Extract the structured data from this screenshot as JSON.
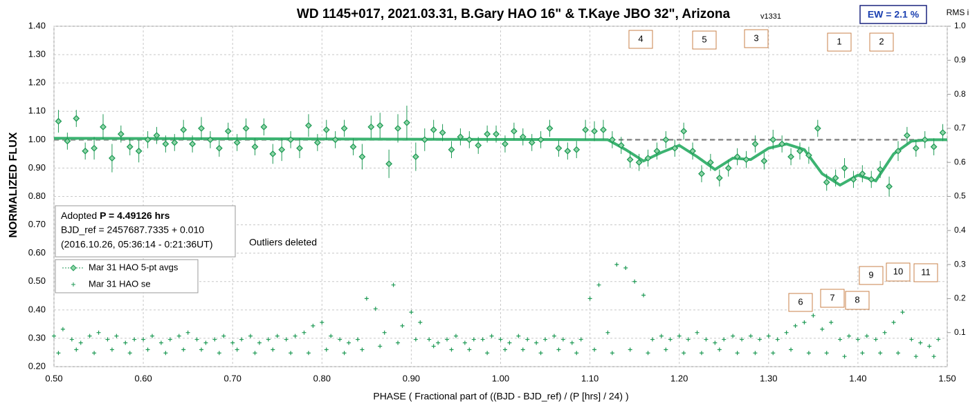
{
  "chart_data": {
    "type": "scatter",
    "title": "WD 1145+017, 2021.03.31, B.Gary HAO 16\" & T.Kaye JBO 32\", Arizona",
    "version": "v1331",
    "ew": "EW = 2.1 %",
    "y2label": "RMS i",
    "xlabel": "PHASE ( Fractional part of ((BJD - BJD_ref) / (P [hrs] / 24) )",
    "ylabel": "NORMALIZED FLUX",
    "info": {
      "prefix": "Adopted",
      "period": "P = 4.49126 hrs",
      "line2": "BJD_ref = 2457687.7335 + 0.010",
      "line3": "(2016.10.26, 05:36:14 - 0:21:36UT)"
    },
    "note": "Outliers deleted",
    "annotations": [
      "4",
      "5",
      "3",
      "1",
      "2",
      "6",
      "7",
      "8",
      "9",
      "10",
      "11"
    ],
    "xlim": [
      0.5,
      1.5
    ],
    "ylim": [
      0.2,
      1.4
    ],
    "y2lim": [
      0,
      1
    ],
    "xticks": [
      {
        "value": 0.5,
        "label": "0.50"
      },
      {
        "value": 0.6,
        "label": "0.60"
      },
      {
        "value": 0.7,
        "label": "0.70"
      },
      {
        "value": 0.8,
        "label": "0.80"
      },
      {
        "value": 0.9,
        "label": "0.90"
      },
      {
        "value": 1.0,
        "label": "1.00"
      },
      {
        "value": 1.1,
        "label": "1.10"
      },
      {
        "value": 1.2,
        "label": "1.20"
      },
      {
        "value": 1.3,
        "label": "1.30"
      },
      {
        "value": 1.4,
        "label": "1.40"
      },
      {
        "value": 1.5,
        "label": "1.50"
      }
    ],
    "yticks": [
      {
        "value": 0.2,
        "label": "0.20"
      },
      {
        "value": 0.3,
        "label": "0.30"
      },
      {
        "value": 0.4,
        "label": "0.40"
      },
      {
        "value": 0.5,
        "label": "0.50"
      },
      {
        "value": 0.6,
        "label": "0.60"
      },
      {
        "value": 0.7,
        "label": "0.70"
      },
      {
        "value": 0.8,
        "label": "0.80"
      },
      {
        "value": 0.9,
        "label": "0.90"
      },
      {
        "value": 1.0,
        "label": "1.00"
      },
      {
        "value": 1.1,
        "label": "1.10"
      },
      {
        "value": 1.2,
        "label": "1.20"
      },
      {
        "value": 1.3,
        "label": "1.30"
      },
      {
        "value": 1.4,
        "label": "1.40"
      }
    ],
    "y2ticks": [
      0.1,
      0.2,
      0.3,
      0.4,
      0.5,
      0.6,
      0.7,
      0.8,
      0.9,
      {
        "value": 1,
        "label": "1.0"
      }
    ],
    "grid": true,
    "series": [
      {
        "name": "Mar 31 HAO 5-pt avgs",
        "color": "#1f9a55",
        "x": [
          0.505,
          0.515,
          0.525,
          0.535,
          0.545,
          0.555,
          0.565,
          0.575,
          0.585,
          0.595,
          0.605,
          0.615,
          0.625,
          0.635,
          0.645,
          0.655,
          0.665,
          0.675,
          0.685,
          0.695,
          0.705,
          0.715,
          0.725,
          0.735,
          0.745,
          0.755,
          0.765,
          0.775,
          0.785,
          0.795,
          0.805,
          0.815,
          0.825,
          0.835,
          0.845,
          0.855,
          0.865,
          0.875,
          0.885,
          0.895,
          0.905,
          0.915,
          0.925,
          0.935,
          0.945,
          0.955,
          0.965,
          0.975,
          0.985,
          0.995,
          1.005,
          1.015,
          1.025,
          1.035,
          1.045,
          1.055,
          1.065,
          1.075,
          1.085,
          1.095,
          1.105,
          1.115,
          1.125,
          1.135,
          1.145,
          1.155,
          1.165,
          1.175,
          1.185,
          1.195,
          1.205,
          1.215,
          1.225,
          1.235,
          1.245,
          1.255,
          1.265,
          1.275,
          1.285,
          1.295,
          1.305,
          1.315,
          1.325,
          1.335,
          1.345,
          1.355,
          1.365,
          1.375,
          1.385,
          1.395,
          1.405,
          1.415,
          1.425,
          1.435,
          1.445,
          1.455,
          1.465,
          1.475,
          1.485,
          1.495
        ],
        "values": [
          1.065,
          0.995,
          1.075,
          0.96,
          0.97,
          1.045,
          0.935,
          1.02,
          0.975,
          0.96,
          1.0,
          1.015,
          0.985,
          0.99,
          1.035,
          0.985,
          1.04,
          1.0,
          0.97,
          1.03,
          0.99,
          1.04,
          0.975,
          1.045,
          0.95,
          0.965,
          1.0,
          0.97,
          1.05,
          0.99,
          1.035,
          1.0,
          1.04,
          0.975,
          0.94,
          1.045,
          1.05,
          0.915,
          1.04,
          1.06,
          0.94,
          1.0,
          1.035,
          1.025,
          0.965,
          1.01,
          1.0,
          0.98,
          1.02,
          1.02,
          0.985,
          1.03,
          1.01,
          0.99,
          1.0,
          1.04,
          0.97,
          0.96,
          0.965,
          1.035,
          1.03,
          1.035,
          1.0,
          0.98,
          0.93,
          0.92,
          0.935,
          0.96,
          1.0,
          0.97,
          1.03,
          0.96,
          0.88,
          0.92,
          0.865,
          0.9,
          0.94,
          0.93,
          0.985,
          0.925,
          1.0,
          0.985,
          0.94,
          0.96,
          0.945,
          1.04,
          0.85,
          0.865,
          0.9,
          0.86,
          0.88,
          0.86,
          0.895,
          0.835,
          0.96,
          1.015,
          0.97,
          1.0,
          0.975,
          1.025
        ],
        "errors": [
          0.04,
          0.03,
          0.03,
          0.03,
          0.04,
          0.045,
          0.05,
          0.03,
          0.03,
          0.04,
          0.03,
          0.03,
          0.03,
          0.03,
          0.035,
          0.03,
          0.04,
          0.03,
          0.03,
          0.03,
          0.03,
          0.035,
          0.03,
          0.03,
          0.035,
          0.04,
          0.03,
          0.035,
          0.04,
          0.03,
          0.035,
          0.03,
          0.03,
          0.03,
          0.045,
          0.04,
          0.045,
          0.05,
          0.05,
          0.06,
          0.05,
          0.04,
          0.035,
          0.03,
          0.03,
          0.03,
          0.03,
          0.03,
          0.03,
          0.03,
          0.03,
          0.03,
          0.03,
          0.03,
          0.03,
          0.03,
          0.03,
          0.03,
          0.03,
          0.035,
          0.035,
          0.035,
          0.03,
          0.03,
          0.03,
          0.03,
          0.03,
          0.03,
          0.03,
          0.03,
          0.03,
          0.03,
          0.03,
          0.03,
          0.03,
          0.03,
          0.03,
          0.03,
          0.03,
          0.03,
          0.035,
          0.03,
          0.03,
          0.03,
          0.03,
          0.03,
          0.03,
          0.03,
          0.035,
          0.03,
          0.03,
          0.03,
          0.03,
          0.035,
          0.035,
          0.03,
          0.03,
          0.03,
          0.03,
          0.03
        ]
      },
      {
        "name": "Mar 31 HAO se",
        "color": "#1f9a55",
        "axis": "y2",
        "x": [
          0.5,
          0.51,
          0.52,
          0.53,
          0.54,
          0.55,
          0.56,
          0.57,
          0.58,
          0.59,
          0.6,
          0.61,
          0.62,
          0.63,
          0.64,
          0.65,
          0.66,
          0.67,
          0.68,
          0.69,
          0.7,
          0.71,
          0.72,
          0.73,
          0.74,
          0.75,
          0.76,
          0.77,
          0.78,
          0.79,
          0.8,
          0.81,
          0.82,
          0.83,
          0.84,
          0.85,
          0.86,
          0.87,
          0.88,
          0.89,
          0.9,
          0.91,
          0.92,
          0.93,
          0.94,
          0.95,
          0.96,
          0.97,
          0.98,
          0.99,
          1.0,
          1.01,
          1.02,
          1.03,
          1.04,
          1.05,
          1.06,
          1.07,
          1.08,
          1.09,
          1.1,
          1.11,
          1.12,
          1.13,
          1.14,
          1.15,
          1.16,
          1.17,
          1.18,
          1.19,
          1.2,
          1.21,
          1.22,
          1.23,
          1.24,
          1.25,
          1.26,
          1.27,
          1.28,
          1.29,
          1.3,
          1.31,
          1.32,
          1.33,
          1.34,
          1.35,
          1.36,
          1.37,
          1.38,
          1.39,
          1.4,
          1.41,
          1.42,
          1.43,
          1.44,
          1.45,
          1.46,
          1.47,
          1.48,
          1.49,
          0.505,
          0.525,
          0.545,
          0.565,
          0.585,
          0.605,
          0.625,
          0.645,
          0.665,
          0.685,
          0.705,
          0.725,
          0.745,
          0.765,
          0.785,
          0.805,
          0.825,
          0.845,
          0.865,
          0.885,
          0.905,
          0.925,
          0.945,
          0.965,
          0.985,
          1.005,
          1.025,
          1.045,
          1.065,
          1.085,
          1.105,
          1.125,
          1.145,
          1.165,
          1.185,
          1.205,
          1.225,
          1.245,
          1.265,
          1.285,
          1.305,
          1.325,
          1.345,
          1.365,
          1.385,
          1.405,
          1.425,
          1.445,
          1.465,
          1.485
        ],
        "values": [
          0.09,
          0.11,
          0.08,
          0.07,
          0.09,
          0.1,
          0.08,
          0.09,
          0.07,
          0.08,
          0.08,
          0.09,
          0.07,
          0.08,
          0.09,
          0.1,
          0.08,
          0.07,
          0.08,
          0.09,
          0.07,
          0.08,
          0.09,
          0.07,
          0.08,
          0.09,
          0.08,
          0.09,
          0.1,
          0.12,
          0.13,
          0.09,
          0.08,
          0.07,
          0.08,
          0.2,
          0.17,
          0.1,
          0.24,
          0.12,
          0.16,
          0.13,
          0.08,
          0.07,
          0.08,
          0.09,
          0.07,
          0.08,
          0.08,
          0.09,
          0.08,
          0.07,
          0.09,
          0.08,
          0.07,
          0.08,
          0.09,
          0.08,
          0.07,
          0.08,
          0.2,
          0.24,
          0.1,
          0.3,
          0.29,
          0.25,
          0.21,
          0.08,
          0.09,
          0.08,
          0.09,
          0.08,
          0.1,
          0.08,
          0.07,
          0.08,
          0.09,
          0.08,
          0.09,
          0.08,
          0.09,
          0.08,
          0.1,
          0.12,
          0.13,
          0.15,
          0.11,
          0.13,
          0.08,
          0.09,
          0.08,
          0.09,
          0.08,
          0.1,
          0.13,
          0.16,
          0.08,
          0.07,
          0.06,
          0.08,
          0.04,
          0.05,
          0.04,
          0.05,
          0.04,
          0.05,
          0.04,
          0.05,
          0.05,
          0.04,
          0.05,
          0.04,
          0.05,
          0.04,
          0.04,
          0.05,
          0.04,
          0.05,
          0.06,
          0.07,
          0.08,
          0.06,
          0.05,
          0.05,
          0.04,
          0.05,
          0.05,
          0.04,
          0.05,
          0.04,
          0.05,
          0.04,
          0.05,
          0.04,
          0.05,
          0.04,
          0.04,
          0.05,
          0.04,
          0.04,
          0.04,
          0.05,
          0.04,
          0.04,
          0.03,
          0.04,
          0.04,
          0.04,
          0.03,
          0.03
        ]
      }
    ],
    "lines": [
      {
        "color": "#888888",
        "style": "dashed",
        "x": [
          0.5,
          1.5
        ],
        "values": [
          1.0,
          1.0
        ]
      },
      {
        "color": "#3cb371",
        "style": "solid",
        "x": [
          0.5,
          1.12,
          1.14,
          1.16,
          1.18,
          1.2,
          1.22,
          1.24,
          1.26,
          1.28,
          1.3,
          1.32,
          1.34,
          1.36,
          1.38,
          1.4,
          1.42,
          1.44,
          1.46,
          1.48,
          1.5
        ],
        "values": [
          1.005,
          1.0,
          0.965,
          0.925,
          0.955,
          0.98,
          0.94,
          0.895,
          0.935,
          0.93,
          0.97,
          0.985,
          0.965,
          0.88,
          0.84,
          0.875,
          0.855,
          0.95,
          0.995,
          1.0,
          1.0
        ]
      }
    ]
  }
}
